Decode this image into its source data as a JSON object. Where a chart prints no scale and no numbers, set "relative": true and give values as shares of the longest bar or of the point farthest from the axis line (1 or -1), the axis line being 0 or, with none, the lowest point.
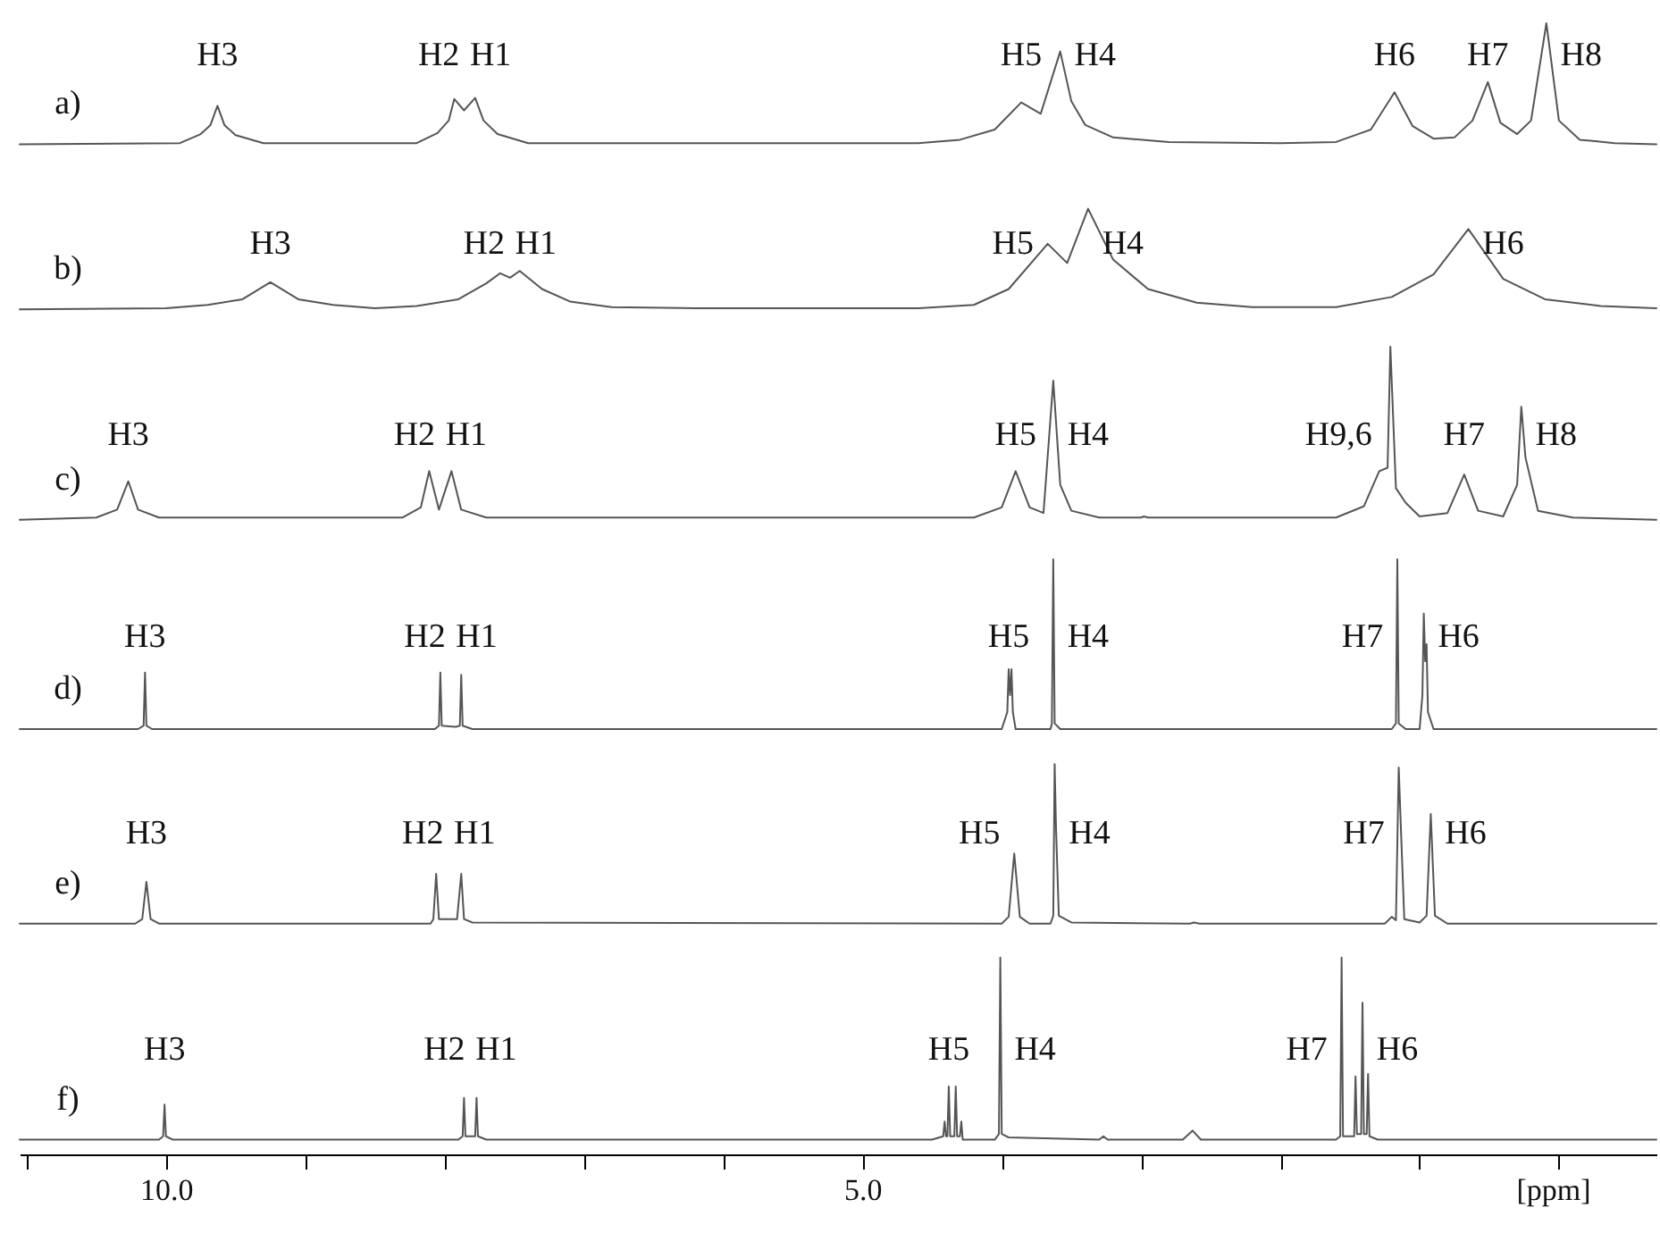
{
  "chart_data": {
    "type": "line",
    "relative": true,
    "legend": false,
    "xlim": [
      11.05,
      -0.7
    ],
    "xlabel": "[ppm]",
    "xticks": [
      {
        "value": 11,
        "label": null
      },
      {
        "value": 10,
        "label": "10.0"
      },
      {
        "value": 9,
        "label": null
      },
      {
        "value": 8,
        "label": null
      },
      {
        "value": 7,
        "label": null
      },
      {
        "value": 6,
        "label": null
      },
      {
        "value": 5,
        "label": "5.0"
      },
      {
        "value": 4,
        "label": null
      },
      {
        "value": 3,
        "label": null
      },
      {
        "value": 2,
        "label": null
      },
      {
        "value": 1,
        "label": null
      },
      {
        "value": 0,
        "label": null
      }
    ],
    "series": [
      {
        "name": "a)",
        "color": "#555555",
        "x": [
          11.05,
          9.9,
          9.75,
          9.68,
          9.63,
          9.58,
          9.5,
          9.3,
          8.2,
          8.05,
          7.97,
          7.93,
          7.86,
          7.78,
          7.72,
          7.62,
          7.4,
          4.6,
          4.3,
          4.05,
          3.86,
          3.72,
          3.58,
          3.5,
          3.4,
          3.2,
          2.8,
          2.0,
          1.6,
          1.35,
          1.18,
          1.05,
          0.9,
          0.75,
          0.62,
          0.51,
          0.42,
          0.3,
          0.2,
          0.09,
          0.0,
          -0.15,
          -0.4,
          -0.7
        ],
        "values": [
          0.893,
          0.894,
          0.902,
          0.91,
          0.927,
          0.91,
          0.901,
          0.894,
          0.894,
          0.903,
          0.914,
          0.933,
          0.923,
          0.934,
          0.914,
          0.902,
          0.894,
          0.894,
          0.897,
          0.906,
          0.93,
          0.92,
          0.975,
          0.931,
          0.91,
          0.899,
          0.895,
          0.894,
          0.895,
          0.906,
          0.939,
          0.909,
          0.898,
          0.899,
          0.914,
          0.948,
          0.912,
          0.902,
          0.914,
          1.0,
          0.914,
          0.897,
          0.894,
          0.893
        ]
      },
      {
        "name": "b)",
        "color": "#555555",
        "x": [
          11.05,
          10.0,
          9.7,
          9.45,
          9.25,
          9.05,
          8.8,
          8.5,
          8.2,
          7.9,
          7.7,
          7.6,
          7.53,
          7.46,
          7.3,
          7.1,
          6.8,
          6.2,
          4.6,
          4.2,
          3.95,
          3.67,
          3.53,
          3.38,
          3.2,
          2.95,
          2.6,
          2.2,
          1.6,
          1.2,
          0.9,
          0.65,
          0.4,
          0.1,
          -0.3,
          -0.7
        ],
        "values": [
          0.747,
          0.748,
          0.751,
          0.756,
          0.771,
          0.756,
          0.751,
          0.748,
          0.75,
          0.756,
          0.77,
          0.779,
          0.775,
          0.781,
          0.765,
          0.754,
          0.749,
          0.748,
          0.748,
          0.751,
          0.765,
          0.805,
          0.788,
          0.836,
          0.791,
          0.765,
          0.753,
          0.749,
          0.749,
          0.758,
          0.778,
          0.818,
          0.774,
          0.756,
          0.75,
          0.748
        ]
      },
      {
        "name": "c)",
        "color": "#555555",
        "x": [
          11.05,
          10.5,
          10.35,
          10.27,
          10.2,
          10.05,
          8.3,
          8.17,
          8.11,
          8.04,
          7.95,
          7.88,
          7.7,
          4.2,
          4.0,
          3.9,
          3.8,
          3.7,
          3.63,
          3.58,
          3.5,
          3.3,
          3.0,
          2.98,
          2.95,
          1.6,
          1.4,
          1.29,
          1.23,
          1.21,
          1.17,
          1.1,
          1.0,
          0.8,
          0.68,
          0.58,
          0.4,
          0.3,
          0.27,
          0.24,
          0.15,
          -0.1,
          -0.7
        ],
        "values": [
          0.561,
          0.563,
          0.57,
          0.595,
          0.57,
          0.563,
          0.563,
          0.572,
          0.604,
          0.57,
          0.604,
          0.57,
          0.563,
          0.563,
          0.572,
          0.604,
          0.572,
          0.567,
          0.684,
          0.592,
          0.569,
          0.563,
          0.563,
          0.564,
          0.563,
          0.563,
          0.573,
          0.604,
          0.607,
          0.714,
          0.589,
          0.576,
          0.564,
          0.567,
          0.601,
          0.569,
          0.564,
          0.592,
          0.661,
          0.616,
          0.569,
          0.563,
          0.561
        ]
      },
      {
        "name": "d)",
        "color": "#555555",
        "x": [
          11.05,
          10.2,
          10.16,
          10.15,
          10.14,
          10.1,
          8.07,
          8.04,
          8.03,
          8.02,
          7.92,
          7.89,
          7.88,
          7.87,
          7.8,
          4.0,
          3.96,
          3.95,
          3.94,
          3.93,
          3.92,
          3.9,
          3.65,
          3.64,
          3.63,
          3.62,
          3.58,
          1.2,
          1.17,
          1.16,
          1.15,
          1.1,
          1.0,
          0.98,
          0.97,
          0.96,
          0.95,
          0.94,
          0.9,
          -0.7
        ],
        "values": [
          0.376,
          0.376,
          0.379,
          0.426,
          0.379,
          0.376,
          0.376,
          0.379,
          0.426,
          0.379,
          0.378,
          0.379,
          0.424,
          0.379,
          0.376,
          0.376,
          0.391,
          0.429,
          0.406,
          0.429,
          0.391,
          0.376,
          0.376,
          0.381,
          0.526,
          0.381,
          0.376,
          0.376,
          0.381,
          0.526,
          0.381,
          0.376,
          0.376,
          0.406,
          0.478,
          0.436,
          0.451,
          0.391,
          0.376,
          0.376
        ]
      },
      {
        "name": "e)",
        "color": "#555555",
        "x": [
          11.05,
          10.22,
          10.17,
          10.14,
          10.11,
          10.05,
          8.1,
          8.08,
          8.06,
          8.04,
          7.91,
          7.88,
          7.86,
          7.8,
          4.0,
          3.95,
          3.91,
          3.87,
          3.8,
          3.65,
          3.63,
          3.62,
          3.61,
          3.59,
          3.5,
          2.65,
          2.62,
          2.58,
          1.25,
          1.2,
          1.17,
          1.15,
          1.13,
          1.11,
          1.0,
          0.95,
          0.92,
          0.89,
          0.8,
          -0.7
        ],
        "values": [
          0.204,
          0.204,
          0.208,
          0.241,
          0.208,
          0.204,
          0.204,
          0.208,
          0.248,
          0.208,
          0.208,
          0.248,
          0.208,
          0.205,
          0.204,
          0.21,
          0.266,
          0.21,
          0.204,
          0.204,
          0.211,
          0.345,
          0.288,
          0.211,
          0.205,
          0.204,
          0.205,
          0.204,
          0.204,
          0.21,
          0.207,
          0.342,
          0.274,
          0.208,
          0.205,
          0.211,
          0.301,
          0.211,
          0.204,
          0.204
        ]
      },
      {
        "name": "f)",
        "color": "#555555",
        "x": [
          11.05,
          10.05,
          10.02,
          10.01,
          10.0,
          9.95,
          7.9,
          7.87,
          7.86,
          7.85,
          7.78,
          7.77,
          7.76,
          7.7,
          4.5,
          4.42,
          4.41,
          4.4,
          4.39,
          4.38,
          4.37,
          4.34,
          4.33,
          4.32,
          4.3,
          4.29,
          4.28,
          4.05,
          4.02,
          4.01,
          4.0,
          3.95,
          3.3,
          3.27,
          3.24,
          2.7,
          2.63,
          2.57,
          1.6,
          1.57,
          1.56,
          1.55,
          1.47,
          1.46,
          1.45,
          1.42,
          1.41,
          1.4,
          1.38,
          1.37,
          1.36,
          1.3,
          -0.7
        ],
        "values": [
          0.013,
          0.013,
          0.016,
          0.044,
          0.016,
          0.013,
          0.013,
          0.016,
          0.05,
          0.016,
          0.016,
          0.05,
          0.016,
          0.013,
          0.013,
          0.016,
          0.029,
          0.016,
          0.016,
          0.06,
          0.016,
          0.016,
          0.06,
          0.016,
          0.016,
          0.029,
          0.013,
          0.013,
          0.018,
          0.174,
          0.018,
          0.015,
          0.013,
          0.016,
          0.013,
          0.013,
          0.021,
          0.013,
          0.013,
          0.016,
          0.174,
          0.016,
          0.016,
          0.069,
          0.018,
          0.018,
          0.134,
          0.018,
          0.018,
          0.071,
          0.016,
          0.013,
          0.013
        ]
      }
    ],
    "annotations": [
      {
        "text": "H3",
        "x": 9.63,
        "y": 0.927
      },
      {
        "text": "H2",
        "x": 7.93,
        "y": 0.933
      },
      {
        "text": "H1",
        "x": 7.78,
        "y": 0.934
      },
      {
        "text": "H5",
        "x": 3.86,
        "y": 0.93
      },
      {
        "text": "H4",
        "x": 3.58,
        "y": 0.975
      },
      {
        "text": "H6",
        "x": 1.18,
        "y": 0.939
      },
      {
        "text": "H7",
        "x": 0.51,
        "y": 0.948
      },
      {
        "text": "H8",
        "x": 0.09,
        "y": 1.0
      },
      {
        "text": "H3",
        "x": 9.25,
        "y": 0.771
      },
      {
        "text": "H2",
        "x": 7.6,
        "y": 0.779
      },
      {
        "text": "H1",
        "x": 7.46,
        "y": 0.781
      },
      {
        "text": "H5",
        "x": 3.67,
        "y": 0.805
      },
      {
        "text": "H4",
        "x": 3.38,
        "y": 0.836
      },
      {
        "text": "H6",
        "x": 0.65,
        "y": 0.818
      },
      {
        "text": "H3",
        "x": 10.27,
        "y": 0.595
      },
      {
        "text": "H2",
        "x": 8.11,
        "y": 0.604
      },
      {
        "text": "H1",
        "x": 7.95,
        "y": 0.604
      },
      {
        "text": "H5",
        "x": 3.9,
        "y": 0.604
      },
      {
        "text": "H4",
        "x": 3.63,
        "y": 0.684
      },
      {
        "text": "H9,6",
        "x": 1.21,
        "y": 0.714
      },
      {
        "text": "H7",
        "x": 0.68,
        "y": 0.601
      },
      {
        "text": "H8",
        "x": 0.27,
        "y": 0.661
      },
      {
        "text": "H3",
        "x": 10.15,
        "y": 0.426
      },
      {
        "text": "H2",
        "x": 8.03,
        "y": 0.426
      },
      {
        "text": "H1",
        "x": 7.88,
        "y": 0.424
      },
      {
        "text": "H5",
        "x": 3.95,
        "y": 0.429
      },
      {
        "text": "H4",
        "x": 3.63,
        "y": 0.526
      },
      {
        "text": "H7",
        "x": 1.16,
        "y": 0.526
      },
      {
        "text": "H6",
        "x": 0.97,
        "y": 0.478
      },
      {
        "text": "H3",
        "x": 10.14,
        "y": 0.241
      },
      {
        "text": "H2",
        "x": 8.06,
        "y": 0.248
      },
      {
        "text": "H1",
        "x": 7.88,
        "y": 0.248
      },
      {
        "text": "H5",
        "x": 3.91,
        "y": 0.266
      },
      {
        "text": "H4",
        "x": 3.62,
        "y": 0.345
      },
      {
        "text": "H7",
        "x": 1.15,
        "y": 0.342
      },
      {
        "text": "H6",
        "x": 0.92,
        "y": 0.301
      },
      {
        "text": "H3",
        "x": 10.01,
        "y": 0.044
      },
      {
        "text": "H2",
        "x": 7.86,
        "y": 0.05
      },
      {
        "text": "H1",
        "x": 7.77,
        "y": 0.05
      },
      {
        "text": "H5",
        "x": 4.38,
        "y": 0.06
      },
      {
        "text": "H4",
        "x": 4.01,
        "y": 0.174
      },
      {
        "text": "H7",
        "x": 1.56,
        "y": 0.174
      },
      {
        "text": "H6",
        "x": 1.41,
        "y": 0.134
      }
    ]
  }
}
